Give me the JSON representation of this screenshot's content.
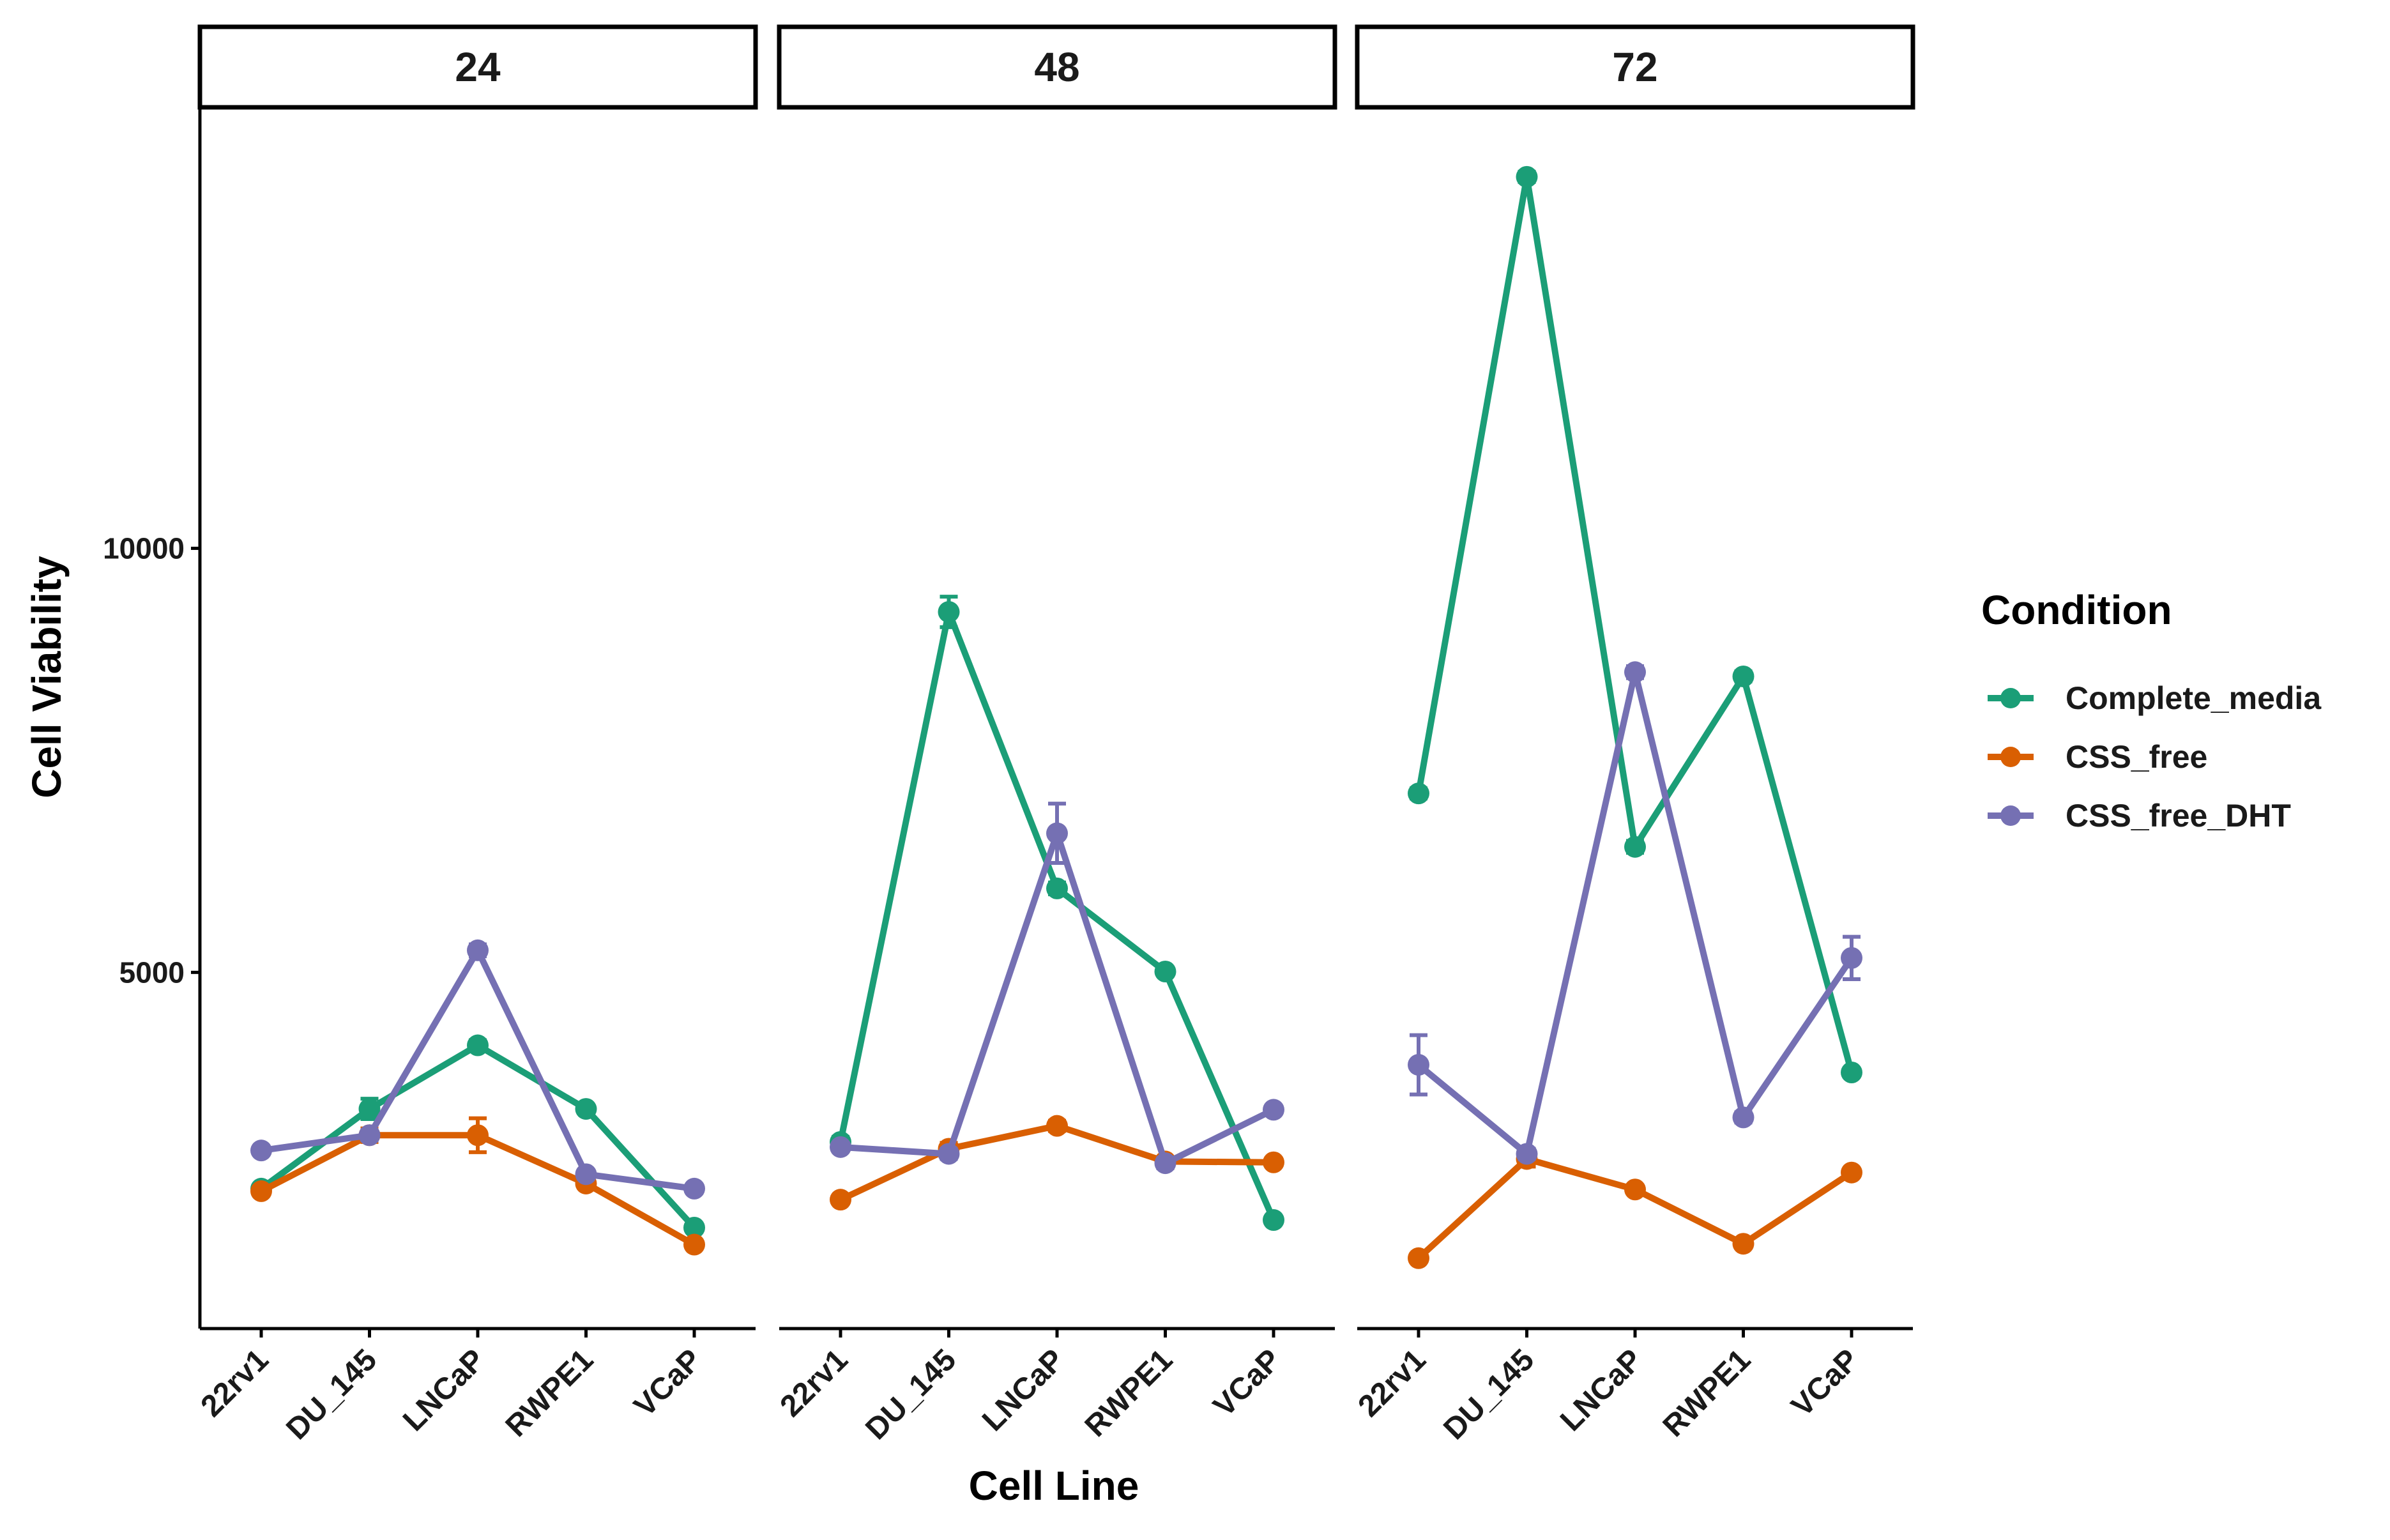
{
  "chart_data": {
    "type": "line",
    "facets": [
      "24",
      "48",
      "72"
    ],
    "categories": [
      "22rv1",
      "DU_145",
      "LNCaP",
      "RWPE1",
      "VCaP"
    ],
    "xlabel": "Cell Line",
    "ylabel": "Cell Viability",
    "ylim": [
      800,
      15200
    ],
    "yticks": [
      5000,
      10000
    ],
    "ytick_labels": [
      "5000",
      "10000"
    ],
    "legend": {
      "title": "Condition",
      "position": "right"
    },
    "grid": false,
    "series": [
      {
        "name": "Complete_media",
        "color": "#1b9e77",
        "values": {
          "24": [
            2450,
            3390,
            4140,
            3390,
            1990
          ],
          "48": [
            3000,
            9250,
            5990,
            5010,
            2080
          ],
          "72": [
            7110,
            14380,
            6480,
            8490,
            3820
          ]
        },
        "errors": {
          "24": [
            40,
            120,
            60,
            50,
            30
          ],
          "48": [
            60,
            180,
            70,
            50,
            40
          ],
          "72": [
            60,
            60,
            70,
            60,
            50
          ]
        }
      },
      {
        "name": "CSS_free",
        "color": "#d95f02",
        "values": {
          "24": [
            2420,
            3080,
            3080,
            2510,
            1790
          ],
          "48": [
            2320,
            2920,
            3190,
            2770,
            2760
          ],
          "72": [
            1630,
            2800,
            2440,
            1800,
            2640
          ]
        },
        "errors": {
          "24": [
            40,
            80,
            200,
            50,
            40
          ],
          "48": [
            40,
            70,
            60,
            50,
            40
          ],
          "72": [
            40,
            90,
            50,
            40,
            50
          ]
        }
      },
      {
        "name": "CSS_free_DHT",
        "color": "#7570b3",
        "values": {
          "24": [
            2900,
            3080,
            5260,
            2620,
            2450
          ],
          "48": [
            2940,
            2860,
            6640,
            2750,
            3380
          ],
          "72": [
            3910,
            2860,
            8540,
            3290,
            5170
          ]
        },
        "errors": {
          "24": [
            40,
            60,
            70,
            50,
            40
          ],
          "48": [
            50,
            60,
            350,
            60,
            50
          ],
          "72": [
            350,
            60,
            70,
            60,
            250
          ]
        }
      }
    ]
  }
}
